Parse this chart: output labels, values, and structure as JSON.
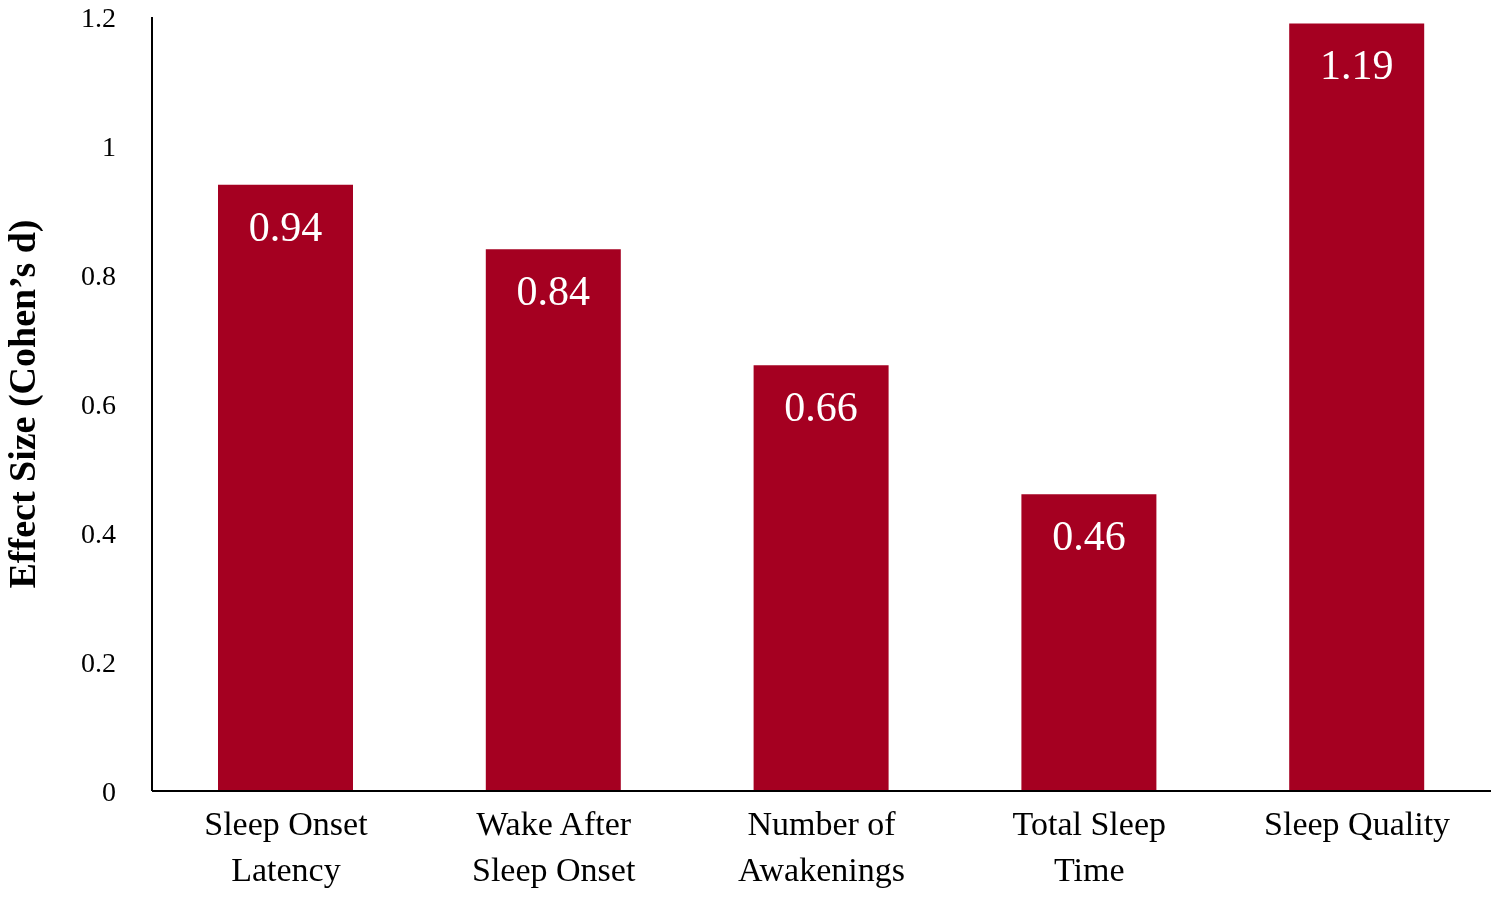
{
  "chart_data": {
    "type": "bar",
    "ylabel": "Effect Size (Cohen’s d)",
    "categories": [
      "Sleep Onset Latency",
      "Wake After Sleep Onset",
      "Number of Awakenings",
      "Total Sleep Time",
      "Sleep Quality"
    ],
    "values": [
      0.94,
      0.84,
      0.66,
      0.46,
      1.19
    ],
    "color": "#a50021",
    "ylim": [
      0,
      1.2
    ],
    "yticks": [
      0,
      0.2,
      0.4,
      0.6,
      0.8,
      1,
      1.2
    ],
    "grid": false,
    "data_labels": true
  }
}
